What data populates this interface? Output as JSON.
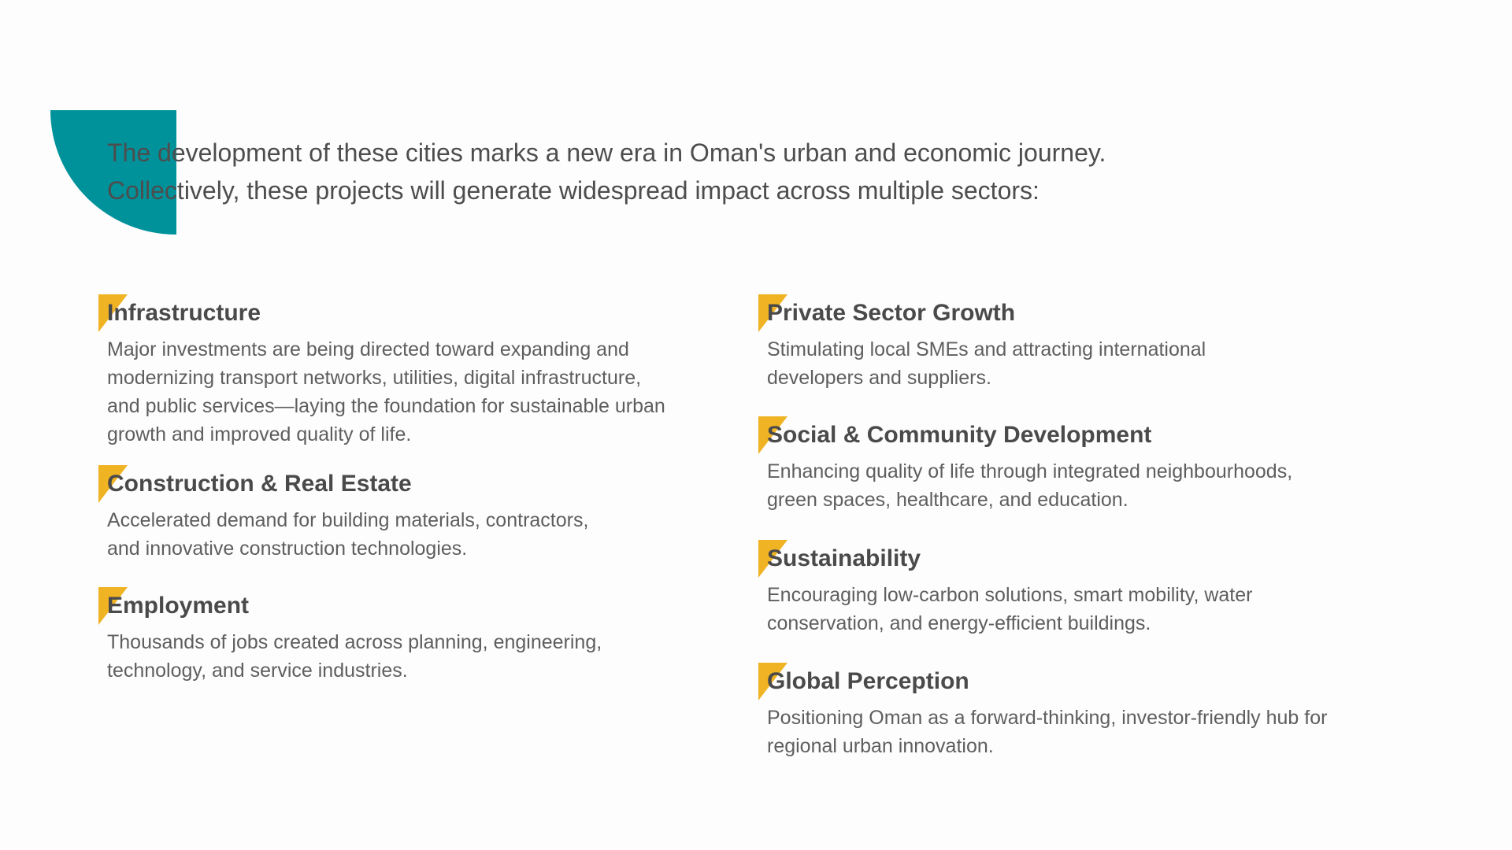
{
  "colors": {
    "accent_teal": "#00929b",
    "accent_yellow": "#f0b323",
    "text": "#4a4a4a"
  },
  "intro": {
    "lines": [
      "The development of these cities marks a new era in Oman's urban and economic journey.",
      "Collectively, these projects will generate widespread impact across multiple sectors:"
    ]
  },
  "left": [
    {
      "title": "Infrastructure",
      "lines": [
        "Major investments are being directed toward expanding and",
        "modernizing transport networks, utilities, digital infrastructure,",
        "and public services—laying the foundation for sustainable urban",
        "growth and improved quality of life."
      ]
    },
    {
      "title": "Construction & Real Estate",
      "lines": [
        "Accelerated demand for building materials, contractors,",
        "and innovative construction technologies."
      ]
    },
    {
      "title": "Employment",
      "lines": [
        "Thousands of jobs created across planning, engineering,",
        "technology, and service industries."
      ]
    }
  ],
  "right": [
    {
      "title": "Private Sector Growth",
      "lines": [
        "Stimulating local SMEs and attracting international",
        "developers and suppliers."
      ]
    },
    {
      "title": "Social & Community Development",
      "lines": [
        "Enhancing quality of life through integrated neighbourhoods,",
        "green spaces, healthcare, and education."
      ]
    },
    {
      "title": "Sustainability",
      "lines": [
        "Encouraging low-carbon solutions, smart mobility, water",
        "conservation, and energy-efficient buildings."
      ]
    },
    {
      "title": "Global Perception",
      "lines": [
        "Positioning Oman as a forward-thinking, investor-friendly hub for",
        "regional urban innovation."
      ]
    }
  ]
}
